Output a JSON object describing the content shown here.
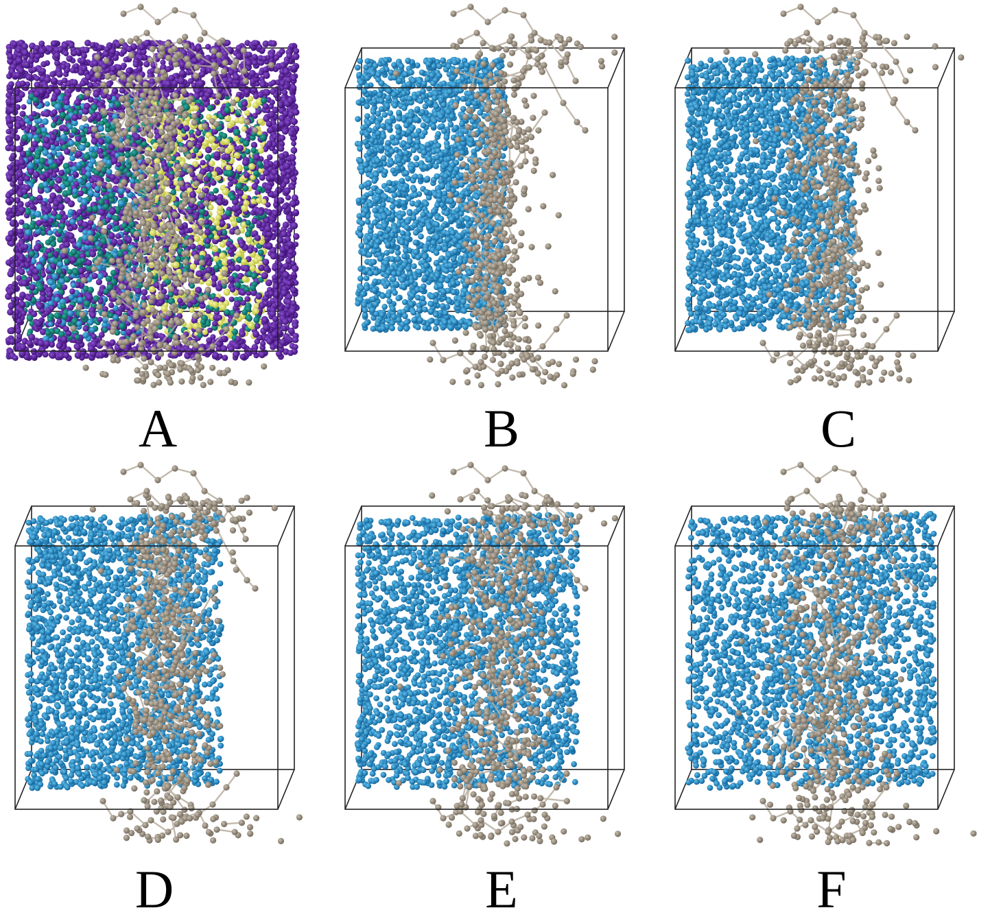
{
  "figure": {
    "panels": [
      {
        "id": "A",
        "label": "A",
        "style": "colored-layers"
      },
      {
        "id": "B",
        "label": "B",
        "spread": 0.0
      },
      {
        "id": "C",
        "label": "C",
        "spread": 0.25
      },
      {
        "id": "D",
        "label": "D",
        "spread": 0.5
      },
      {
        "id": "E",
        "label": "E",
        "spread": 0.75
      },
      {
        "id": "F",
        "label": "F",
        "spread": 1.0
      }
    ],
    "colors": {
      "solvent_bead": "#1a82c2",
      "polymer_bead": "#9a8f80",
      "polymer_bond": "#b8ae9f",
      "box_edge": "#222222",
      "layer_purple": "#5a1a9e",
      "layer_teal": "#0f7a75",
      "layer_yellow": "#e4e868",
      "layer_blue": "#1a82c2"
    }
  }
}
